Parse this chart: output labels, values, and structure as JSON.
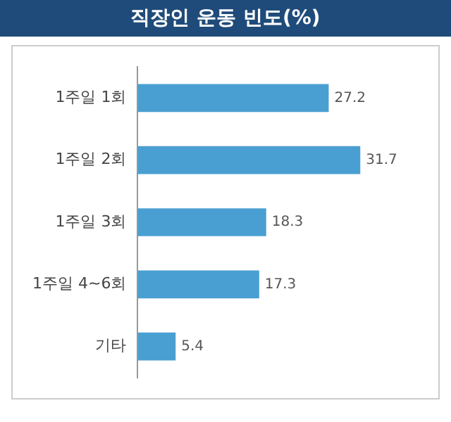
{
  "chart_data": {
    "type": "bar",
    "orientation": "horizontal",
    "title": "직장인 운동 빈도(%)",
    "categories": [
      "1주일 1회",
      "1주일 2회",
      "1주일 3회",
      "1주일 4~6회",
      "기타"
    ],
    "values": [
      27.2,
      31.7,
      18.3,
      17.3,
      5.4
    ],
    "color": "#4a9fd2",
    "data_labels": true,
    "grid": false,
    "legend": false
  }
}
